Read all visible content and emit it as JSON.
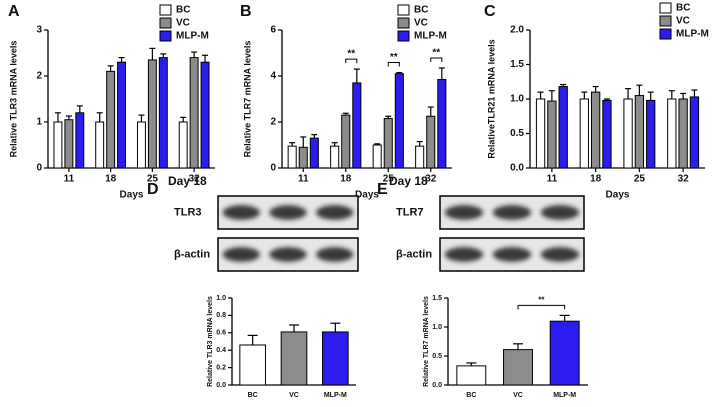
{
  "chart_data": [
    {
      "type": "grouped-bar",
      "panel_label": "A",
      "ylabel": "Relative TLR3 mRNA levels",
      "xlabel": "Days",
      "categories": [
        "11",
        "18",
        "25",
        "32"
      ],
      "ylim": [
        0,
        3
      ],
      "yticks": [
        0,
        1,
        2,
        3
      ],
      "series": [
        {
          "name": "BC",
          "color": "#ffffff",
          "values": [
            1.0,
            1.0,
            1.0,
            1.0
          ],
          "errors": [
            0.2,
            0.2,
            0.15,
            0.1
          ]
        },
        {
          "name": "VC",
          "color": "#8c8c8c",
          "values": [
            1.05,
            2.1,
            2.35,
            2.4
          ],
          "errors": [
            0.08,
            0.12,
            0.25,
            0.12
          ]
        },
        {
          "name": "MLP-M",
          "color": "#2b1cf0",
          "values": [
            1.2,
            2.3,
            2.4,
            2.3
          ],
          "errors": [
            0.15,
            0.1,
            0.08,
            0.15
          ]
        }
      ]
    },
    {
      "type": "grouped-bar",
      "panel_label": "B",
      "ylabel": "Relative TLR7 mRNA levels",
      "xlabel": "Days",
      "categories": [
        "11",
        "18",
        "25",
        "32"
      ],
      "ylim": [
        0,
        6
      ],
      "yticks": [
        0,
        2,
        4,
        6
      ],
      "series": [
        {
          "name": "BC",
          "color": "#ffffff",
          "values": [
            0.95,
            0.95,
            1.0,
            0.95
          ],
          "errors": [
            0.15,
            0.15,
            0.05,
            0.2
          ]
        },
        {
          "name": "VC",
          "color": "#8c8c8c",
          "values": [
            0.9,
            2.3,
            2.15,
            2.25
          ],
          "errors": [
            0.45,
            0.08,
            0.1,
            0.4
          ]
        },
        {
          "name": "MLP-M",
          "color": "#2b1cf0",
          "values": [
            1.3,
            3.7,
            4.1,
            3.85
          ],
          "errors": [
            0.15,
            0.6,
            0.05,
            0.5
          ]
        }
      ],
      "annotations": [
        {
          "label": "**",
          "category": "18"
        },
        {
          "label": "**",
          "category": "25"
        },
        {
          "label": "**",
          "category": "32"
        }
      ]
    },
    {
      "type": "grouped-bar",
      "panel_label": "C",
      "ylabel": "RelativeTLR21 mRNA levels",
      "xlabel": "Days",
      "categories": [
        "11",
        "18",
        "25",
        "32"
      ],
      "ylim": [
        0,
        2
      ],
      "yticks": [
        {
          "value": 0,
          "label": "0.0"
        },
        0.5,
        {
          "value": 1,
          "label": "1.0"
        },
        1.5,
        {
          "value": 2,
          "label": "2.0"
        }
      ],
      "series": [
        {
          "name": "BC",
          "color": "#ffffff",
          "values": [
            1.0,
            1.0,
            1.0,
            1.0
          ],
          "errors": [
            0.1,
            0.1,
            0.15,
            0.12
          ]
        },
        {
          "name": "VC",
          "color": "#8c8c8c",
          "values": [
            0.97,
            1.1,
            1.05,
            1.0
          ],
          "errors": [
            0.15,
            0.08,
            0.15,
            0.08
          ]
        },
        {
          "name": "MLP-M",
          "color": "#2b1cf0",
          "values": [
            1.18,
            0.98,
            0.98,
            1.03
          ],
          "errors": [
            0.03,
            0.02,
            0.12,
            0.1
          ]
        }
      ]
    },
    {
      "type": "bar",
      "panel_label": "D",
      "blot_title": "Day 18",
      "blot_labels": [
        "TLR3",
        "β-actin"
      ],
      "ylabel": "Relative TLR3 mRNA levels",
      "categories": [
        "BC",
        "VC",
        "MLP-M"
      ],
      "colors": [
        "#ffffff",
        "#8c8c8c",
        "#2b1cf0"
      ],
      "values": [
        0.46,
        0.61,
        0.61
      ],
      "errors": [
        0.11,
        0.08,
        0.1
      ],
      "ylim": [
        0,
        1
      ],
      "yticks": [
        {
          "value": 0,
          "label": "0.0"
        },
        0.2,
        0.4,
        0.6,
        0.8,
        {
          "value": 1,
          "label": "1.0"
        }
      ]
    },
    {
      "type": "bar",
      "panel_label": "E",
      "blot_title": "Day 18",
      "blot_labels": [
        "TLR7",
        "β-actin"
      ],
      "ylabel": "Relative TLR7 mRNA levels",
      "categories": [
        "BC",
        "VC",
        "MLP-M"
      ],
      "colors": [
        "#ffffff",
        "#8c8c8c",
        "#2b1cf0"
      ],
      "values": [
        0.33,
        0.61,
        1.1
      ],
      "errors": [
        0.05,
        0.1,
        0.1
      ],
      "ylim": [
        0,
        1.5
      ],
      "yticks": [
        {
          "value": 0,
          "label": "0.0"
        },
        0.5,
        {
          "value": 1,
          "label": "1.0"
        },
        1.5
      ],
      "annotations": [
        {
          "label": "**",
          "between": [
            "VC",
            "MLP-M"
          ]
        }
      ]
    }
  ]
}
